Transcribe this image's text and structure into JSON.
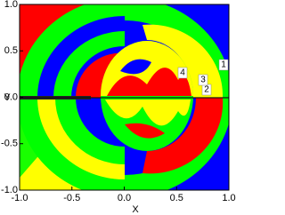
{
  "chart_data": {
    "type": "basin",
    "xlabel": "X",
    "ylabel": "Y",
    "xlim": [
      -1.0,
      1.0
    ],
    "ylim": [
      -1.0,
      1.0
    ],
    "xticks": [
      {
        "value": -1.0,
        "label": "-1.0"
      },
      {
        "value": -0.5,
        "label": "-0.5"
      },
      {
        "value": 0.0,
        "label": "0.0"
      },
      {
        "value": 0.5,
        "label": "0.5"
      },
      {
        "value": 1.0,
        "label": "1.0"
      }
    ],
    "yticks": [
      {
        "value": -1.0,
        "label": "-1.0"
      },
      {
        "value": -0.5,
        "label": "-0.5"
      },
      {
        "value": 0.0,
        "label": "0.0"
      },
      {
        "value": 0.5,
        "label": "0.5"
      },
      {
        "value": 1.0,
        "label": "1.0"
      }
    ],
    "annotations": [
      "1",
      "2",
      "3",
      "4"
    ]
  }
}
